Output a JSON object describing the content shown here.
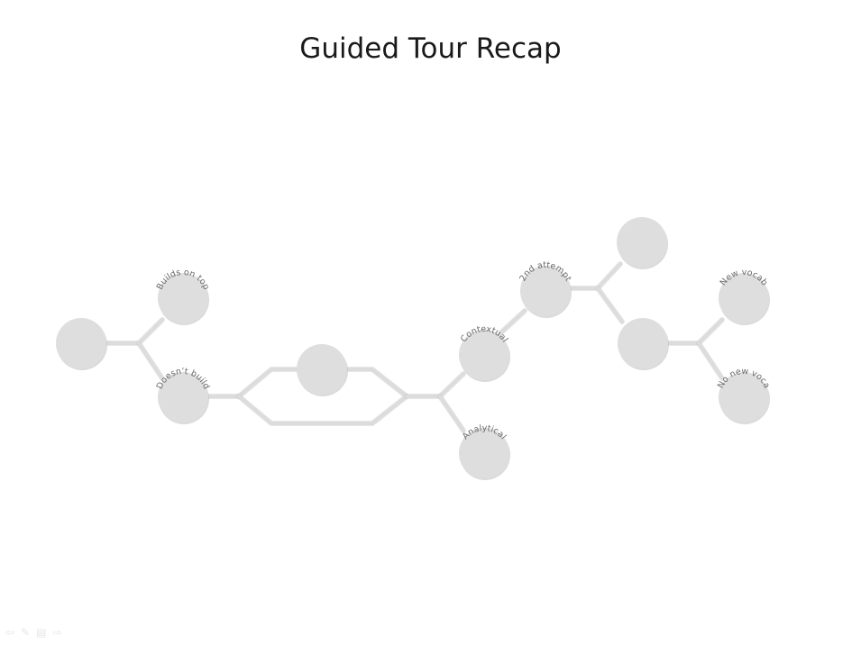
{
  "slide": {
    "title": "Guided Tour Recap"
  },
  "diagram": {
    "nodes": [
      {
        "id": "root",
        "label": ""
      },
      {
        "id": "builds-on-top",
        "label": "Builds on top"
      },
      {
        "id": "doesnt-build",
        "label": "Doesn’t build"
      },
      {
        "id": "middle",
        "label": ""
      },
      {
        "id": "contextual",
        "label": "Contextual"
      },
      {
        "id": "analytical",
        "label": "Analytical"
      },
      {
        "id": "second-attempt",
        "label": "2nd attempt"
      },
      {
        "id": "top-right",
        "label": ""
      },
      {
        "id": "right-hub",
        "label": ""
      },
      {
        "id": "new-vocab",
        "label": "New vocab"
      },
      {
        "id": "no-new-voca",
        "label": "No new voca"
      }
    ]
  },
  "controls": {
    "prev_icon": "⇦",
    "pen_icon": "✎",
    "menu_icon": "▤",
    "next_icon": "⇨"
  }
}
